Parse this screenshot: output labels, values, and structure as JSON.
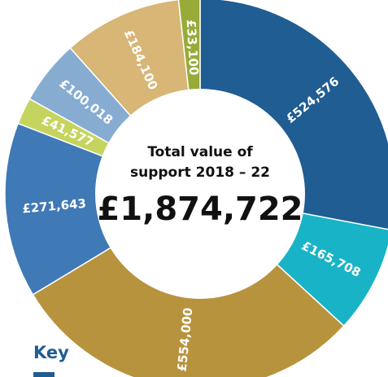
{
  "chart_data": {
    "type": "pie",
    "title": "",
    "center": {
      "title_line1": "Total value of",
      "title_line2": "support 2018 – 22",
      "total": "£1,874,722"
    },
    "slices": [
      {
        "value": 524576,
        "label": "£524,576",
        "color": "#1f5d93"
      },
      {
        "value": 165708,
        "label": "£165,708",
        "color": "#18b3c6"
      },
      {
        "value": 554000,
        "label": "£554,000",
        "color": "#b8933e"
      },
      {
        "value": 271643,
        "label": "£271,643",
        "color": "#3f79b6"
      },
      {
        "value": 41577,
        "label": "£41,577",
        "color": "#c5d45e"
      },
      {
        "value": 100018,
        "label": "£100,018",
        "color": "#87acd2"
      },
      {
        "value": 184100,
        "label": "£184,100",
        "color": "#d7b676"
      },
      {
        "value": 33100,
        "label": "£33,100",
        "color": "#97ab39"
      }
    ]
  },
  "key": {
    "heading": "Key"
  }
}
